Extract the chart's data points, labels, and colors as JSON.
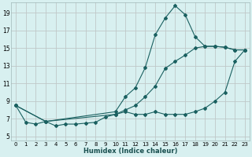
{
  "xlabel": "Humidex (Indice chaleur)",
  "bg_color": "#d8f0f0",
  "grid_color": "#c0c8c8",
  "line_color": "#1a6060",
  "xlim": [
    -0.5,
    23.5
  ],
  "ylim": [
    4.5,
    20.2
  ],
  "xticks": [
    0,
    1,
    2,
    3,
    4,
    5,
    6,
    7,
    8,
    9,
    10,
    11,
    12,
    13,
    14,
    15,
    16,
    17,
    18,
    19,
    20,
    21,
    22,
    23
  ],
  "yticks": [
    5,
    7,
    9,
    11,
    13,
    15,
    17,
    19
  ],
  "series1_x": [
    0,
    1,
    2,
    3,
    4,
    5,
    6,
    7,
    8,
    9,
    10,
    11,
    12,
    13,
    14,
    15,
    16,
    17,
    18,
    19,
    20,
    21,
    22,
    23
  ],
  "series1_y": [
    8.5,
    6.6,
    6.4,
    6.7,
    6.2,
    6.4,
    6.4,
    6.5,
    6.6,
    7.2,
    7.5,
    7.8,
    7.5,
    7.5,
    7.8,
    7.5,
    7.5,
    7.5,
    7.8,
    8.2,
    9.0,
    10.0,
    13.5,
    14.8
  ],
  "series2_x": [
    0,
    3,
    10,
    11,
    12,
    13,
    14,
    15,
    16,
    17,
    18,
    19,
    20,
    21,
    22,
    23
  ],
  "series2_y": [
    8.5,
    6.7,
    7.8,
    9.5,
    10.5,
    12.8,
    16.5,
    18.4,
    19.8,
    18.8,
    16.3,
    15.2,
    15.2,
    15.1,
    14.8,
    14.8
  ],
  "series3_x": [
    0,
    3,
    10,
    11,
    12,
    13,
    14,
    15,
    16,
    17,
    18,
    19,
    20,
    21,
    22,
    23
  ],
  "series3_y": [
    8.5,
    6.7,
    7.5,
    8.0,
    8.5,
    9.5,
    10.7,
    12.7,
    13.5,
    14.2,
    15.0,
    15.2,
    15.2,
    15.1,
    14.8,
    14.8
  ]
}
